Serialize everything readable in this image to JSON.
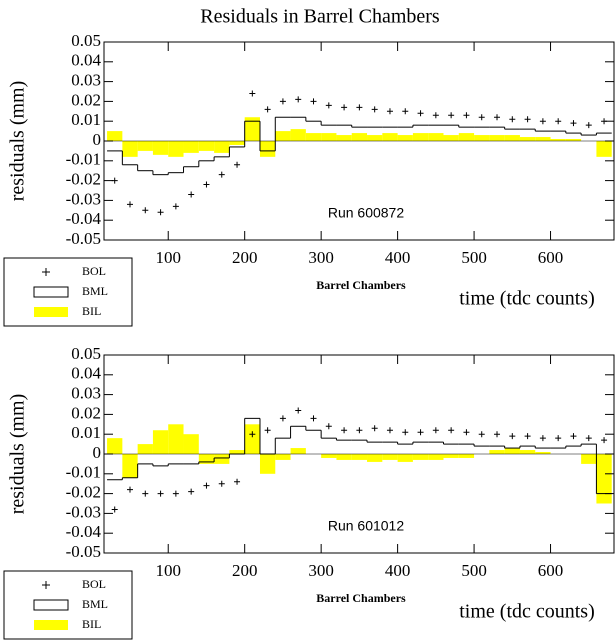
{
  "chart_data": [
    {
      "type": "histogram",
      "title": "Residuals in Barrel Chambers",
      "ylabel": "residuals (mm)",
      "xlabel": "time (tdc counts)",
      "xlabel_small": "Barrel Chambers",
      "annotation": "Run 600872",
      "xlim": [
        16,
        683
      ],
      "ylim": [
        -0.05,
        0.05
      ],
      "xticks": [
        100,
        200,
        300,
        400,
        500,
        600
      ],
      "yticks": [
        0.05,
        0.04,
        0.03,
        0.02,
        0.01,
        0,
        -0.01,
        -0.02,
        -0.03,
        -0.04,
        -0.05
      ],
      "bins": [
        20,
        40,
        60,
        80,
        100,
        120,
        140,
        160,
        180,
        200,
        220,
        240,
        260,
        280,
        300,
        320,
        340,
        360,
        380,
        400,
        420,
        440,
        460,
        480,
        500,
        520,
        540,
        560,
        580,
        600,
        620,
        640,
        660,
        680
      ],
      "series": [
        {
          "name": "BOL",
          "style": "marker",
          "color": "#000000",
          "values": [
            -0.02,
            -0.032,
            -0.035,
            -0.036,
            -0.033,
            -0.027,
            -0.022,
            -0.017,
            -0.012,
            0.024,
            0.016,
            0.02,
            0.021,
            0.02,
            0.018,
            0.017,
            0.017,
            0.016,
            0.015,
            0.015,
            0.014,
            0.013,
            0.013,
            0.013,
            0.012,
            0.012,
            0.011,
            0.011,
            0.01,
            0.01,
            0.009,
            0.008,
            0.01
          ]
        },
        {
          "name": "BML",
          "style": "step",
          "color": "#000000",
          "values": [
            -0.005,
            -0.012,
            -0.015,
            -0.017,
            -0.016,
            -0.013,
            -0.01,
            -0.008,
            -0.003,
            0.01,
            -0.005,
            0.012,
            0.012,
            0.01,
            0.008,
            0.008,
            0.007,
            0.007,
            0.007,
            0.007,
            0.008,
            0.008,
            0.008,
            0.007,
            0.007,
            0.007,
            0.006,
            0.006,
            0.005,
            0.005,
            0.004,
            0.003,
            0.004
          ]
        },
        {
          "name": "BIL",
          "style": "fill",
          "color": "#ffff00",
          "values": [
            0.005,
            -0.008,
            -0.005,
            -0.007,
            -0.008,
            -0.006,
            -0.005,
            -0.006,
            -0.002,
            0.012,
            -0.008,
            0.005,
            0.006,
            0.004,
            0.004,
            0.003,
            0.004,
            0.003,
            0.004,
            0.003,
            0.004,
            0.004,
            0.003,
            0.004,
            0.003,
            0.003,
            0.003,
            0.002,
            0.002,
            0.001,
            0.001,
            0,
            -0.008
          ]
        }
      ]
    },
    {
      "type": "histogram",
      "ylabel": "residuals (mm)",
      "xlabel": "time (tdc counts)",
      "xlabel_small": "Barrel Chambers",
      "annotation": "Run 601012",
      "xlim": [
        16,
        683
      ],
      "ylim": [
        -0.05,
        0.05
      ],
      "xticks": [
        100,
        200,
        300,
        400,
        500,
        600
      ],
      "yticks": [
        0.05,
        0.04,
        0.03,
        0.02,
        0.01,
        0,
        -0.01,
        -0.02,
        -0.03,
        -0.04,
        -0.05
      ],
      "bins": [
        20,
        40,
        60,
        80,
        100,
        120,
        140,
        160,
        180,
        200,
        220,
        240,
        260,
        280,
        300,
        320,
        340,
        360,
        380,
        400,
        420,
        440,
        460,
        480,
        500,
        520,
        540,
        560,
        580,
        600,
        620,
        640,
        660,
        680
      ],
      "series": [
        {
          "name": "BOL",
          "style": "marker",
          "color": "#000000",
          "values": [
            -0.028,
            -0.018,
            -0.02,
            -0.02,
            -0.02,
            -0.019,
            -0.016,
            -0.015,
            -0.014,
            0.01,
            0.012,
            0.018,
            0.022,
            0.018,
            0.014,
            0.012,
            0.012,
            0.013,
            0.012,
            0.011,
            0.011,
            0.012,
            0.012,
            0.011,
            0.01,
            0.01,
            0.009,
            0.009,
            0.008,
            0.008,
            0.009,
            0.008,
            0.007
          ]
        },
        {
          "name": "BML",
          "style": "step",
          "color": "#000000",
          "values": [
            -0.013,
            -0.012,
            -0.005,
            -0.006,
            -0.005,
            -0.005,
            -0.004,
            -0.002,
            0,
            0.018,
            0,
            0.008,
            0.014,
            0.012,
            0.008,
            0.007,
            0.007,
            0.006,
            0.006,
            0.005,
            0.006,
            0.006,
            0.005,
            0.005,
            0.004,
            0.004,
            0.003,
            0.004,
            0.003,
            0.003,
            0.004,
            0.005,
            -0.02
          ]
        },
        {
          "name": "BIL",
          "style": "fill",
          "color": "#ffff00",
          "values": [
            0.008,
            -0.012,
            0.005,
            0.012,
            0.015,
            0.01,
            -0.005,
            -0.005,
            0.002,
            0.015,
            -0.01,
            -0.003,
            0.003,
            0,
            -0.002,
            -0.003,
            -0.003,
            -0.004,
            -0.003,
            -0.004,
            -0.003,
            -0.003,
            -0.002,
            -0.002,
            0,
            0.002,
            0.003,
            0.002,
            0.001,
            0,
            0,
            -0.005,
            -0.025
          ]
        }
      ]
    }
  ]
}
